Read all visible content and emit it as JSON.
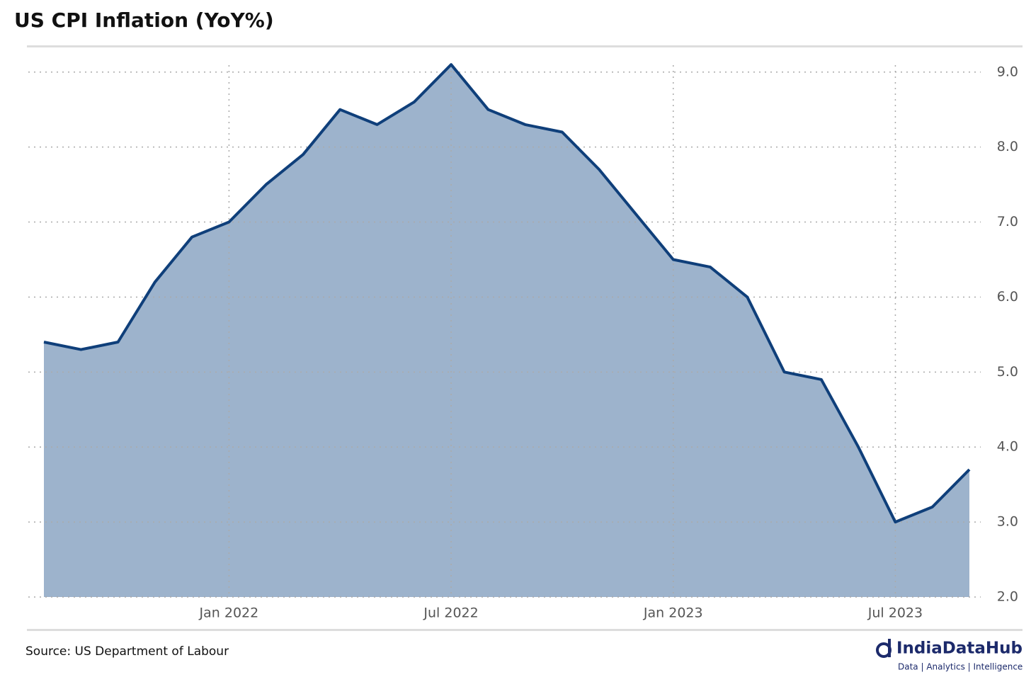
{
  "chart_data": {
    "type": "area",
    "title": "US CPI Inflation (YoY%)",
    "source": "Source: US Department of Labour",
    "brand": {
      "name": "IndiaDataHub",
      "tagline": "Data | Analytics | Intelligence"
    },
    "x": [
      "2021-08",
      "2021-09",
      "2021-10",
      "2021-11",
      "2021-12",
      "2022-01",
      "2022-02",
      "2022-03",
      "2022-04",
      "2022-05",
      "2022-06",
      "2022-07",
      "2022-08",
      "2022-09",
      "2022-10",
      "2022-11",
      "2022-12",
      "2023-01",
      "2023-02",
      "2023-03",
      "2023-04",
      "2023-05",
      "2023-06",
      "2023-07",
      "2023-08",
      "2023-09"
    ],
    "values": [
      5.4,
      5.3,
      5.4,
      6.2,
      6.8,
      7.0,
      7.5,
      7.9,
      8.5,
      8.3,
      8.6,
      9.1,
      8.5,
      8.3,
      8.2,
      7.7,
      7.1,
      6.5,
      6.4,
      6.0,
      5.0,
      4.9,
      4.0,
      3.0,
      3.2,
      3.7
    ],
    "color": "#0f3f7a",
    "fill": "#9db3cc",
    "ylim": [
      2.0,
      9.3
    ],
    "yticks": [
      {
        "value": 2,
        "label": "2.0"
      },
      {
        "value": 3,
        "label": "3.0"
      },
      {
        "value": 4,
        "label": "4.0"
      },
      {
        "value": 5,
        "label": "5.0"
      },
      {
        "value": 6,
        "label": "6.0"
      },
      {
        "value": 7,
        "label": "7.0"
      },
      {
        "value": 8,
        "label": "8.0"
      },
      {
        "value": 9,
        "label": "9.0"
      }
    ],
    "xticks": [
      {
        "value": "2022-01",
        "label": "Jan 2022"
      },
      {
        "value": "2022-07",
        "label": "Jul 2022"
      },
      {
        "value": "2023-01",
        "label": "Jan 2023"
      },
      {
        "value": "2023-07",
        "label": "Jul 2023"
      }
    ],
    "grid": true
  }
}
